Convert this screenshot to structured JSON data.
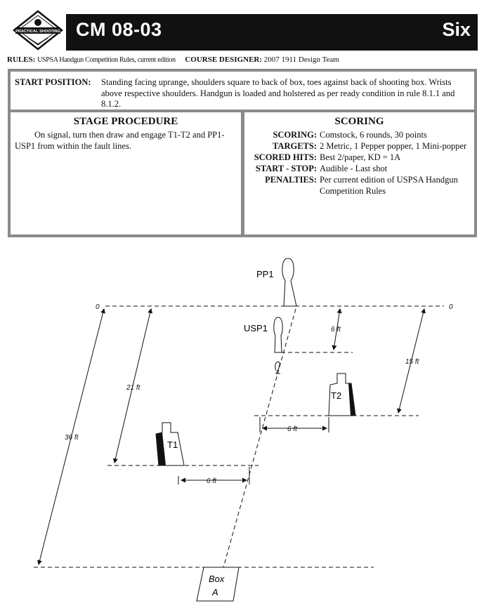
{
  "header": {
    "logo_text": "PRACTICAL SHOOTING",
    "course_code": "CM 08-03",
    "round_word": "Six"
  },
  "rules_line": {
    "rules_label": "RULES:",
    "rules_value": "USPSA Handgun Competition Rules, current edition",
    "designer_label": "COURSE DESIGNER:",
    "designer_value": "2007 1911 Design Team"
  },
  "start_position": {
    "label": "START POSITION:",
    "text": "Standing facing uprange, shoulders square to back of box, toes against back of shooting box. Wrists above respective shoulders. Handgun is loaded and holstered as per ready condition in rule 8.1.1 and 8.1.2."
  },
  "stage_procedure": {
    "title": "STAGE PROCEDURE",
    "text": "On signal, turn then draw and engage T1-T2 and PP1-USP1 from within the fault lines."
  },
  "scoring": {
    "title": "SCORING",
    "rows": [
      {
        "label": "SCORING:",
        "value": "Comstock, 6 rounds, 30 points"
      },
      {
        "label": "TARGETS:",
        "value": "2 Metric, 1 Pepper popper, 1 Mini-popper"
      },
      {
        "label": "SCORED HITS:",
        "value": "Best 2/paper, KD = 1A"
      },
      {
        "label": "START - STOP:",
        "value": "Audible - Last shot"
      },
      {
        "label": "PENALTIES:",
        "value": "Per current edition of USPSA Handgun Competition Rules"
      }
    ]
  },
  "diagram": {
    "targets": {
      "pp1": "PP1",
      "usp1": "USP1",
      "t1": "T1",
      "t2": "T2"
    },
    "zero_left": "0",
    "zero_right": "0",
    "distances": {
      "d36": "36 ft",
      "d21": "21 ft",
      "d15": "15 ft",
      "d6_vertical": "6 ft",
      "d6_upper": "6 ft",
      "d6_lower": "6 ft"
    },
    "box_line1": "Box",
    "box_line2": "A"
  }
}
